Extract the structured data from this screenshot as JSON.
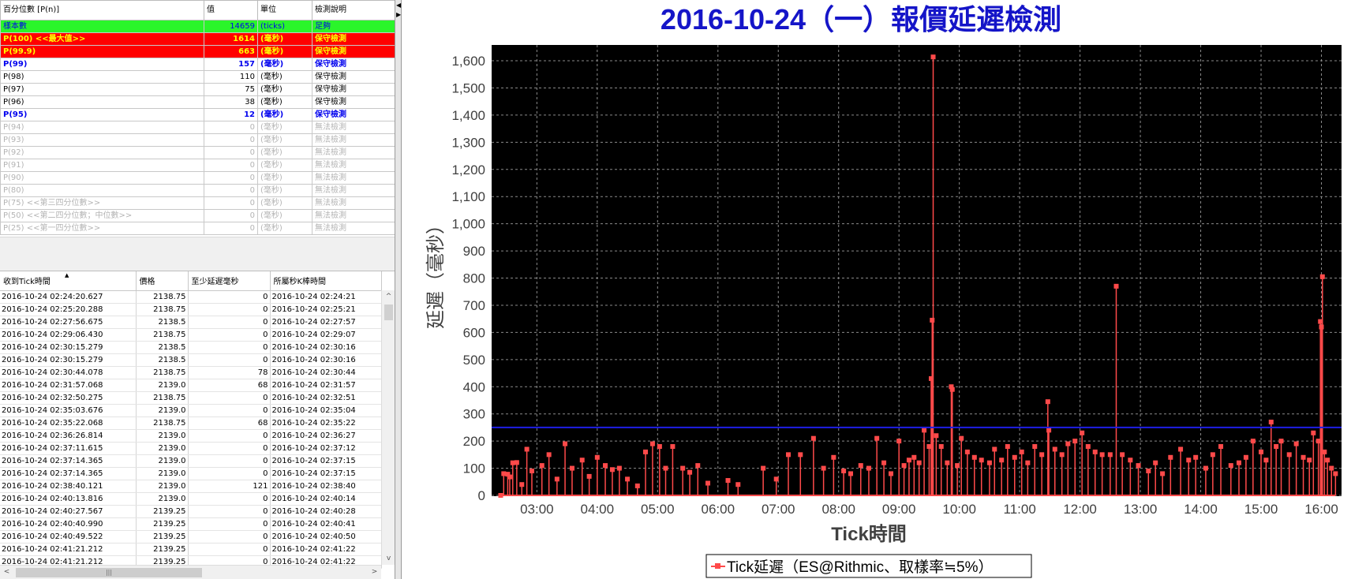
{
  "percentile_table": {
    "headers": [
      "百分位數 [P(n)]",
      "值",
      "單位",
      "檢測說明"
    ],
    "rows": [
      {
        "label": "樣本數",
        "value": "14659",
        "unit": "(ticks)",
        "desc": "足夠",
        "style": "green"
      },
      {
        "label": "P(100)  <<最大值>>",
        "value": "1614",
        "unit": "(毫秒)",
        "desc": "保守檢測",
        "style": "red"
      },
      {
        "label": "P(99.9)",
        "value": "663",
        "unit": "(毫秒)",
        "desc": "保守檢測",
        "style": "red"
      },
      {
        "label": "P(99)",
        "value": "157",
        "unit": "(毫秒)",
        "desc": "保守檢測",
        "style": "blue"
      },
      {
        "label": "P(98)",
        "value": "110",
        "unit": "(毫秒)",
        "desc": "保守檢測",
        "style": "black"
      },
      {
        "label": "P(97)",
        "value": "75",
        "unit": "(毫秒)",
        "desc": "保守檢測",
        "style": "black"
      },
      {
        "label": "P(96)",
        "value": "38",
        "unit": "(毫秒)",
        "desc": "保守檢測",
        "style": "black"
      },
      {
        "label": "P(95)",
        "value": "12",
        "unit": "(毫秒)",
        "desc": "保守檢測",
        "style": "blue"
      },
      {
        "label": "P(94)",
        "value": "0",
        "unit": "(毫秒)",
        "desc": "無法檢測",
        "style": "gray"
      },
      {
        "label": "P(93)",
        "value": "0",
        "unit": "(毫秒)",
        "desc": "無法檢測",
        "style": "gray"
      },
      {
        "label": "P(92)",
        "value": "0",
        "unit": "(毫秒)",
        "desc": "無法檢測",
        "style": "gray"
      },
      {
        "label": "P(91)",
        "value": "0",
        "unit": "(毫秒)",
        "desc": "無法檢測",
        "style": "gray"
      },
      {
        "label": "P(90)",
        "value": "0",
        "unit": "(毫秒)",
        "desc": "無法檢測",
        "style": "gray"
      },
      {
        "label": "P(80)",
        "value": "0",
        "unit": "(毫秒)",
        "desc": "無法檢測",
        "style": "gray"
      },
      {
        "label": "P(75)  <<第三四分位數>>",
        "value": "0",
        "unit": "(毫秒)",
        "desc": "無法檢測",
        "style": "gray"
      },
      {
        "label": "P(50)  <<第二四分位數；中位數>>",
        "value": "0",
        "unit": "(毫秒)",
        "desc": "無法檢測",
        "style": "gray"
      },
      {
        "label": "P(25)  <<第一四分位數>>",
        "value": "0",
        "unit": "(毫秒)",
        "desc": "無法檢測",
        "style": "gray"
      }
    ]
  },
  "tick_table": {
    "headers": [
      "收到Tick時間",
      "價格",
      "至少延遲毫秒",
      "所屬秒K棒時間"
    ],
    "rows": [
      [
        "2016-10-24 02:24:20.627",
        "2138.75",
        "0",
        "2016-10-24 02:24:21"
      ],
      [
        "2016-10-24 02:25:20.288",
        "2138.75",
        "0",
        "2016-10-24 02:25:21"
      ],
      [
        "2016-10-24 02:27:56.675",
        "2138.5",
        "0",
        "2016-10-24 02:27:57"
      ],
      [
        "2016-10-24 02:29:06.430",
        "2138.75",
        "0",
        "2016-10-24 02:29:07"
      ],
      [
        "2016-10-24 02:30:15.279",
        "2138.5",
        "0",
        "2016-10-24 02:30:16"
      ],
      [
        "2016-10-24 02:30:15.279",
        "2138.5",
        "0",
        "2016-10-24 02:30:16"
      ],
      [
        "2016-10-24 02:30:44.078",
        "2138.75",
        "78",
        "2016-10-24 02:30:44"
      ],
      [
        "2016-10-24 02:31:57.068",
        "2139.0",
        "68",
        "2016-10-24 02:31:57"
      ],
      [
        "2016-10-24 02:32:50.275",
        "2138.75",
        "0",
        "2016-10-24 02:32:51"
      ],
      [
        "2016-10-24 02:35:03.676",
        "2139.0",
        "0",
        "2016-10-24 02:35:04"
      ],
      [
        "2016-10-24 02:35:22.068",
        "2138.75",
        "68",
        "2016-10-24 02:35:22"
      ],
      [
        "2016-10-24 02:36:26.814",
        "2139.0",
        "0",
        "2016-10-24 02:36:27"
      ],
      [
        "2016-10-24 02:37:11.615",
        "2139.0",
        "0",
        "2016-10-24 02:37:12"
      ],
      [
        "2016-10-24 02:37:14.365",
        "2139.0",
        "0",
        "2016-10-24 02:37:15"
      ],
      [
        "2016-10-24 02:37:14.365",
        "2139.0",
        "0",
        "2016-10-24 02:37:15"
      ],
      [
        "2016-10-24 02:38:40.121",
        "2139.0",
        "121",
        "2016-10-24 02:38:40"
      ],
      [
        "2016-10-24 02:40:13.816",
        "2139.0",
        "0",
        "2016-10-24 02:40:14"
      ],
      [
        "2016-10-24 02:40:27.567",
        "2139.25",
        "0",
        "2016-10-24 02:40:28"
      ],
      [
        "2016-10-24 02:40:40.990",
        "2139.25",
        "0",
        "2016-10-24 02:40:41"
      ],
      [
        "2016-10-24 02:40:49.522",
        "2139.25",
        "0",
        "2016-10-24 02:40:50"
      ],
      [
        "2016-10-24 02:41:21.212",
        "2139.25",
        "0",
        "2016-10-24 02:41:22"
      ],
      [
        "2016-10-24 02:41:21.212",
        "2139.25",
        "0",
        "2016-10-24 02:41:22"
      ]
    ]
  },
  "scrollbar": {
    "up": "^",
    "down": "v",
    "left": "<",
    "right": ">",
    "grip": "|||"
  },
  "colors": {
    "plot_bg": "#000000",
    "grid": "#8a8a8a",
    "series": "#ff4a4a",
    "threshold": "#1e1ee6",
    "title": "#1515c8"
  },
  "chart_data": {
    "type": "line",
    "title": "2016-10-24（一）報價延遲檢測",
    "xlabel": "Tick時間",
    "ylabel": "延遲（毫秒）",
    "ylim": [
      0,
      1600
    ],
    "ytick_step": 100,
    "yticks": [
      "0",
      "100",
      "200",
      "300",
      "400",
      "500",
      "600",
      "700",
      "800",
      "900",
      "1,000",
      "1,100",
      "1,200",
      "1,300",
      "1,400",
      "1,500",
      "1,600"
    ],
    "xlim": [
      "02:15",
      "16:20"
    ],
    "xticks": [
      "03:00",
      "04:00",
      "05:00",
      "06:00",
      "07:00",
      "08:00",
      "09:00",
      "10:00",
      "11:00",
      "12:00",
      "13:00",
      "14:00",
      "15:00",
      "16:00"
    ],
    "grid": true,
    "threshold_line": 250,
    "legend_position": "bottom",
    "series": [
      {
        "name": "Tick延遲（ES@Rithmic、取樣率≒5%）",
        "points": [
          [
            "02:24",
            0
          ],
          [
            "02:27",
            80
          ],
          [
            "02:31",
            78
          ],
          [
            "02:33",
            68
          ],
          [
            "02:36",
            120
          ],
          [
            "02:40",
            121
          ],
          [
            "02:45",
            40
          ],
          [
            "02:50",
            170
          ],
          [
            "02:55",
            90
          ],
          [
            "03:05",
            110
          ],
          [
            "03:12",
            150
          ],
          [
            "03:20",
            60
          ],
          [
            "03:28",
            190
          ],
          [
            "03:35",
            100
          ],
          [
            "03:45",
            130
          ],
          [
            "03:52",
            70
          ],
          [
            "04:00",
            140
          ],
          [
            "04:08",
            110
          ],
          [
            "04:15",
            95
          ],
          [
            "04:22",
            100
          ],
          [
            "04:30",
            60
          ],
          [
            "04:40",
            35
          ],
          [
            "04:48",
            160
          ],
          [
            "04:55",
            190
          ],
          [
            "05:02",
            180
          ],
          [
            "05:08",
            100
          ],
          [
            "05:15",
            180
          ],
          [
            "05:25",
            100
          ],
          [
            "05:32",
            85
          ],
          [
            "05:40",
            110
          ],
          [
            "05:50",
            45
          ],
          [
            "06:10",
            55
          ],
          [
            "06:20",
            40
          ],
          [
            "06:45",
            100
          ],
          [
            "06:58",
            60
          ],
          [
            "07:10",
            150
          ],
          [
            "07:22",
            150
          ],
          [
            "07:35",
            210
          ],
          [
            "07:45",
            100
          ],
          [
            "07:55",
            140
          ],
          [
            "08:05",
            90
          ],
          [
            "08:12",
            80
          ],
          [
            "08:22",
            110
          ],
          [
            "08:30",
            100
          ],
          [
            "08:38",
            210
          ],
          [
            "08:45",
            120
          ],
          [
            "08:52",
            80
          ],
          [
            "09:00",
            200
          ],
          [
            "09:05",
            110
          ],
          [
            "09:10",
            130
          ],
          [
            "09:15",
            140
          ],
          [
            "09:20",
            120
          ],
          [
            "09:25",
            240
          ],
          [
            "09:30",
            180
          ],
          [
            "09:32",
            430
          ],
          [
            "09:33",
            645
          ],
          [
            "09:34",
            1614
          ],
          [
            "09:37",
            220
          ],
          [
            "09:42",
            180
          ],
          [
            "09:48",
            120
          ],
          [
            "09:52",
            400
          ],
          [
            "09:53",
            390
          ],
          [
            "09:58",
            110
          ],
          [
            "10:02",
            210
          ],
          [
            "10:08",
            160
          ],
          [
            "10:15",
            140
          ],
          [
            "10:22",
            130
          ],
          [
            "10:30",
            120
          ],
          [
            "10:35",
            170
          ],
          [
            "10:42",
            130
          ],
          [
            "10:48",
            180
          ],
          [
            "10:55",
            140
          ],
          [
            "11:02",
            160
          ],
          [
            "11:08",
            120
          ],
          [
            "11:15",
            180
          ],
          [
            "11:22",
            150
          ],
          [
            "11:28",
            345
          ],
          [
            "11:29",
            240
          ],
          [
            "11:35",
            170
          ],
          [
            "11:42",
            150
          ],
          [
            "11:48",
            190
          ],
          [
            "11:55",
            200
          ],
          [
            "12:02",
            230
          ],
          [
            "12:08",
            180
          ],
          [
            "12:15",
            160
          ],
          [
            "12:22",
            150
          ],
          [
            "12:30",
            150
          ],
          [
            "12:36",
            770
          ],
          [
            "12:42",
            150
          ],
          [
            "12:50",
            130
          ],
          [
            "12:58",
            110
          ],
          [
            "13:08",
            90
          ],
          [
            "13:15",
            120
          ],
          [
            "13:22",
            80
          ],
          [
            "13:30",
            140
          ],
          [
            "13:40",
            170
          ],
          [
            "13:48",
            130
          ],
          [
            "13:55",
            140
          ],
          [
            "14:05",
            100
          ],
          [
            "14:12",
            150
          ],
          [
            "14:20",
            180
          ],
          [
            "14:30",
            110
          ],
          [
            "14:38",
            120
          ],
          [
            "14:45",
            140
          ],
          [
            "14:52",
            200
          ],
          [
            "15:00",
            160
          ],
          [
            "15:05",
            130
          ],
          [
            "15:10",
            270
          ],
          [
            "15:15",
            180
          ],
          [
            "15:20",
            200
          ],
          [
            "15:28",
            150
          ],
          [
            "15:35",
            190
          ],
          [
            "15:42",
            140
          ],
          [
            "15:48",
            130
          ],
          [
            "15:52",
            230
          ],
          [
            "15:57",
            200
          ],
          [
            "15:59",
            640
          ],
          [
            "16:00",
            620
          ],
          [
            "16:01",
            805
          ],
          [
            "16:03",
            160
          ],
          [
            "16:06",
            130
          ],
          [
            "16:10",
            100
          ],
          [
            "16:14",
            80
          ]
        ]
      }
    ]
  }
}
